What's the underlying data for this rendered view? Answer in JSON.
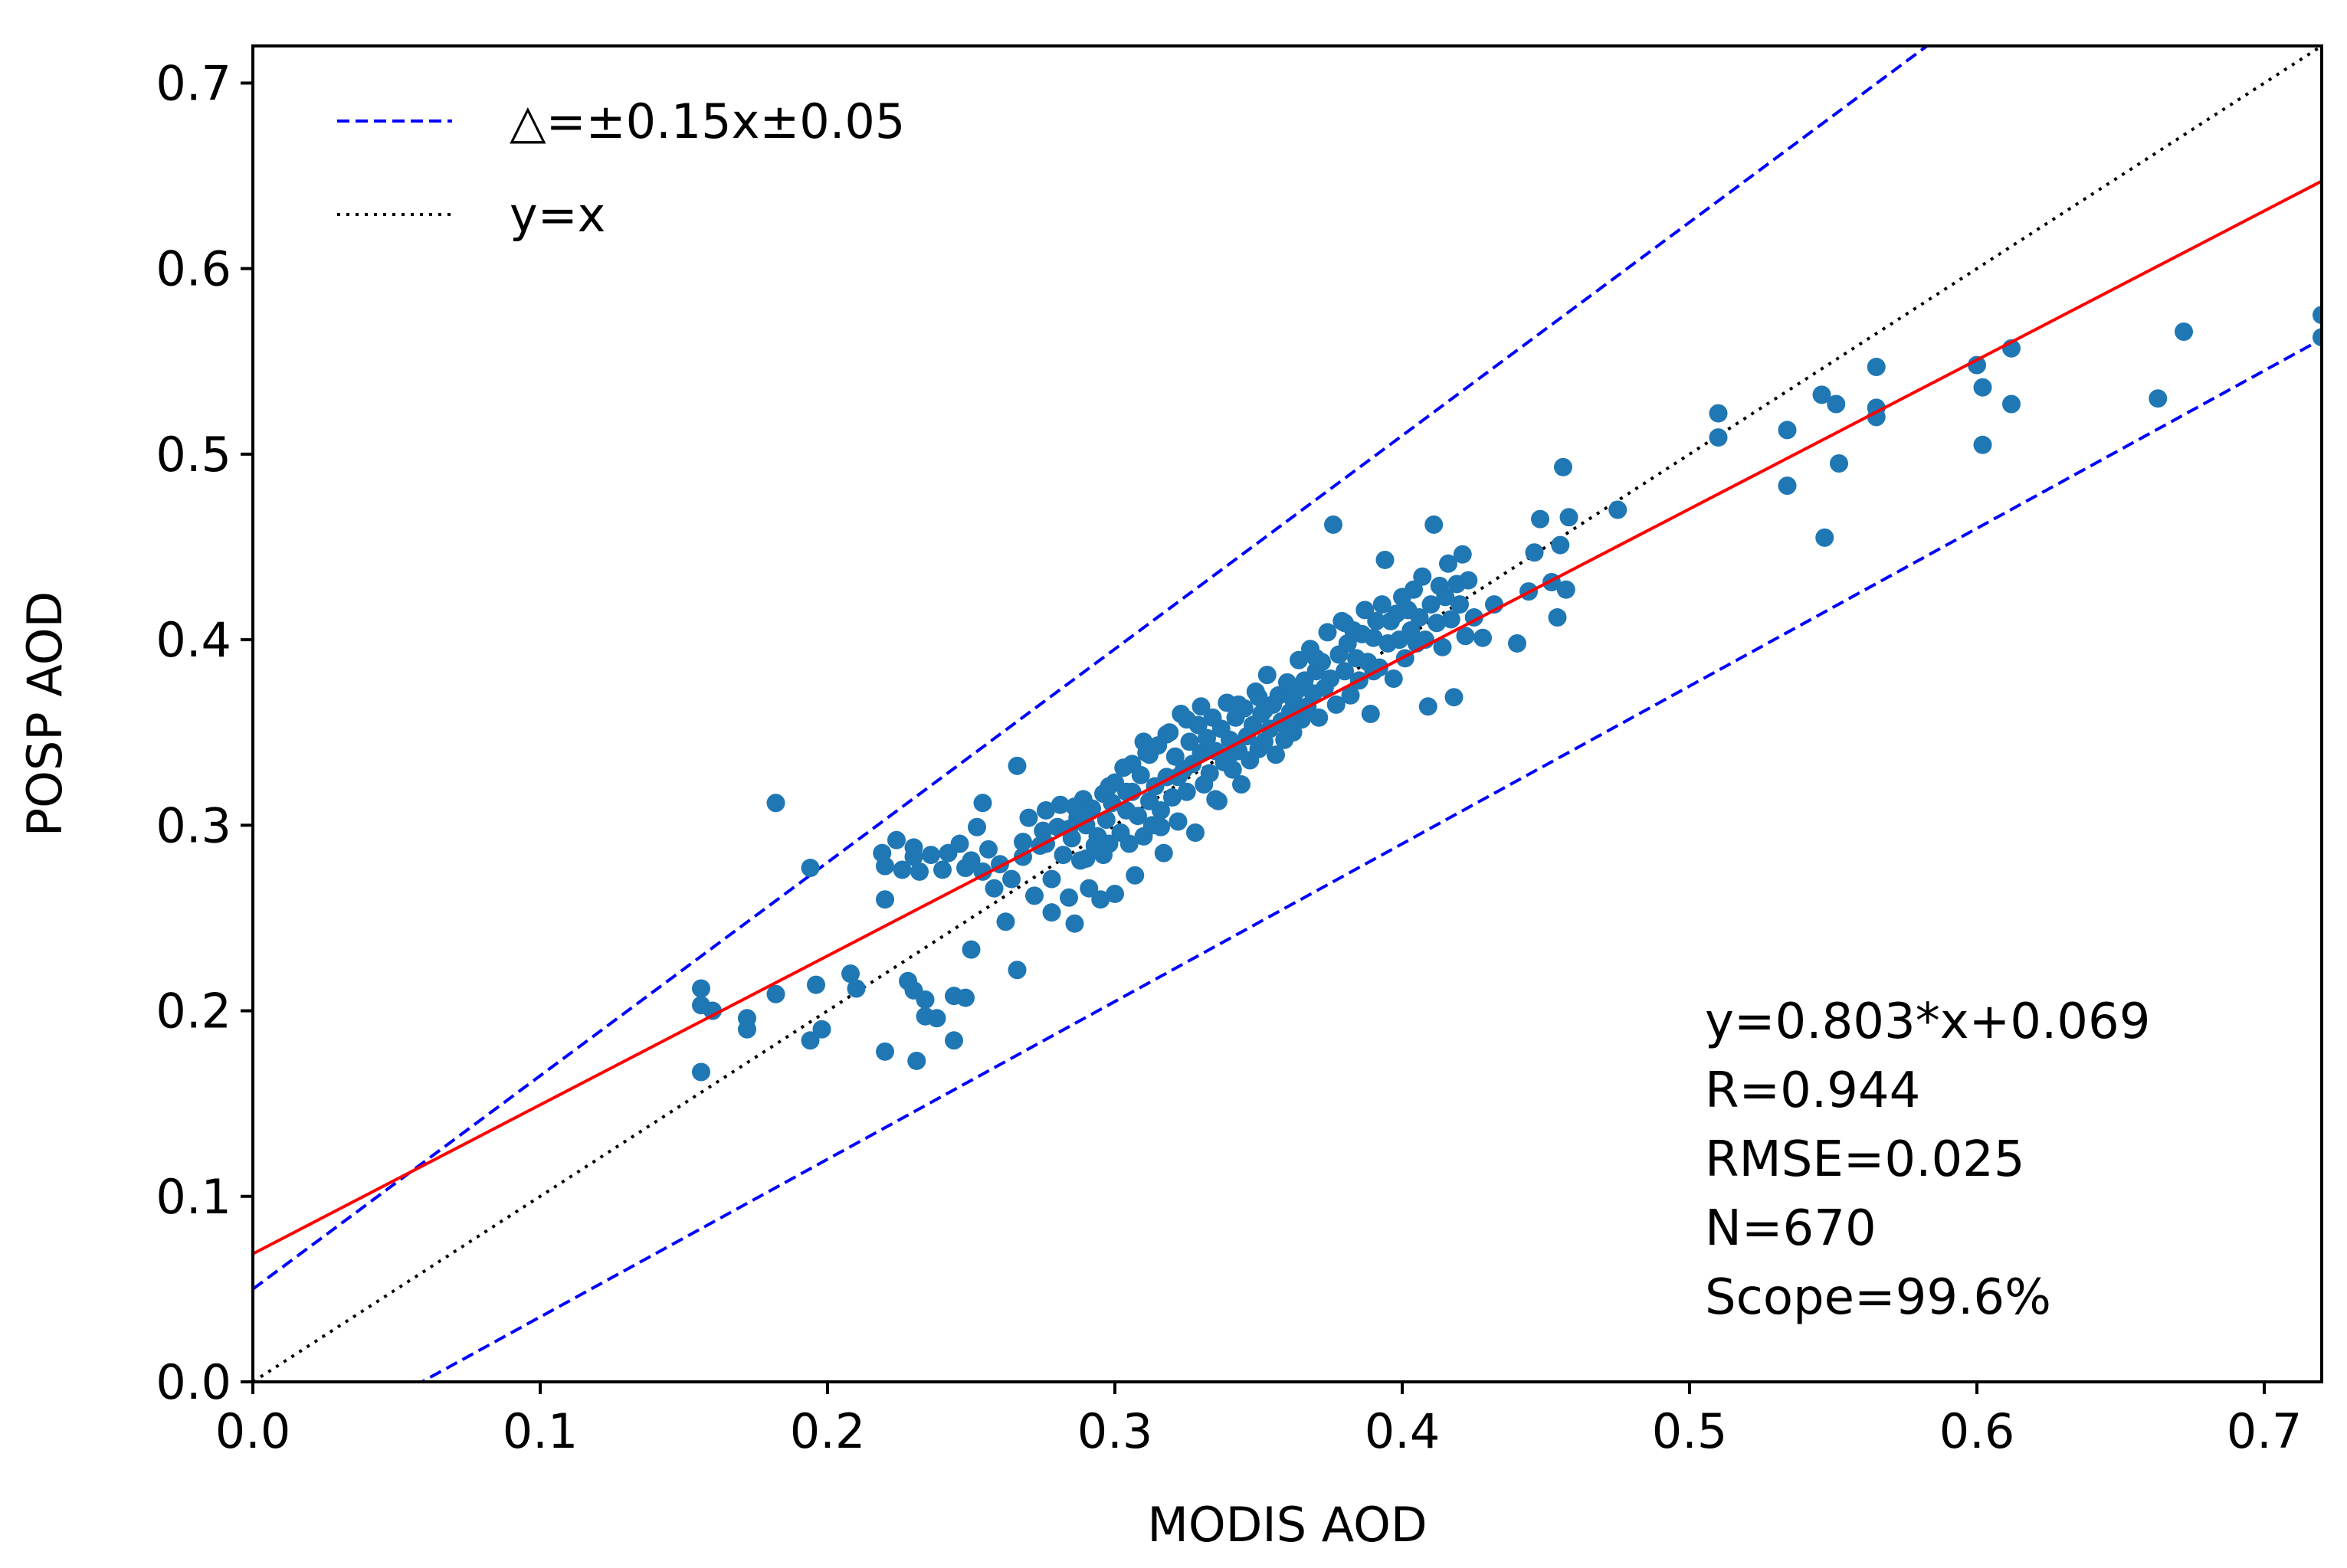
{
  "chart_data": {
    "type": "scatter",
    "title": "",
    "xlabel": "MODIS AOD",
    "ylabel": "POSP AOD",
    "xlim": [
      0.0,
      0.72
    ],
    "ylim": [
      0.0,
      0.72
    ],
    "xticks": [
      0.0,
      0.1,
      0.2,
      0.3,
      0.4,
      0.5,
      0.6,
      0.7
    ],
    "yticks": [
      0.0,
      0.1,
      0.2,
      0.3,
      0.4,
      0.5,
      0.6,
      0.7
    ],
    "xtick_labels": [
      "0.0",
      "0.1",
      "0.2",
      "0.3",
      "0.4",
      "0.5",
      "0.6",
      "0.7"
    ],
    "ytick_labels": [
      "0.0",
      "0.1",
      "0.2",
      "0.3",
      "0.4",
      "0.5",
      "0.6",
      "0.7"
    ],
    "grid": false,
    "legend": {
      "placement": "top-left",
      "entries": [
        {
          "label": "△=±0.15x±0.05",
          "style": "dashed",
          "color": "#0000ff"
        },
        {
          "label": "y=x",
          "style": "dotted",
          "color": "#000000"
        }
      ]
    },
    "lines": [
      {
        "name": "upper-envelope",
        "slope": 1.15,
        "intercept": 0.05,
        "color": "#0000ff",
        "style": "dashed"
      },
      {
        "name": "lower-envelope",
        "slope": 0.85,
        "intercept": -0.05,
        "color": "#0000ff",
        "style": "dashed"
      },
      {
        "name": "one-to-one",
        "slope": 1.0,
        "intercept": 0.0,
        "color": "#000000",
        "style": "dotted"
      },
      {
        "name": "fit",
        "slope": 0.803,
        "intercept": 0.069,
        "color": "#ff0000",
        "style": "solid"
      }
    ],
    "annotation_lines": [
      "y=0.803*x+0.069",
      "R=0.944",
      "RMSE=0.025",
      "N=670",
      "Scope=99.6%"
    ],
    "point_color": "#1f77b4",
    "series": [
      {
        "name": "samples",
        "points": [
          [
            0.156,
            0.212
          ],
          [
            0.156,
            0.203
          ],
          [
            0.156,
            0.167
          ],
          [
            0.16,
            0.2
          ],
          [
            0.172,
            0.196
          ],
          [
            0.172,
            0.19
          ],
          [
            0.182,
            0.312
          ],
          [
            0.182,
            0.209
          ],
          [
            0.194,
            0.277
          ],
          [
            0.194,
            0.184
          ],
          [
            0.196,
            0.214
          ],
          [
            0.198,
            0.19
          ],
          [
            0.208,
            0.22
          ],
          [
            0.21,
            0.212
          ],
          [
            0.219,
            0.285
          ],
          [
            0.22,
            0.26
          ],
          [
            0.22,
            0.278
          ],
          [
            0.22,
            0.178
          ],
          [
            0.224,
            0.292
          ],
          [
            0.226,
            0.276
          ],
          [
            0.228,
            0.216
          ],
          [
            0.23,
            0.283
          ],
          [
            0.23,
            0.211
          ],
          [
            0.23,
            0.288
          ],
          [
            0.231,
            0.173
          ],
          [
            0.232,
            0.275
          ],
          [
            0.234,
            0.206
          ],
          [
            0.234,
            0.197
          ],
          [
            0.236,
            0.284
          ],
          [
            0.238,
            0.196
          ],
          [
            0.24,
            0.276
          ],
          [
            0.242,
            0.285
          ],
          [
            0.244,
            0.208
          ],
          [
            0.244,
            0.184
          ],
          [
            0.246,
            0.29
          ],
          [
            0.248,
            0.277
          ],
          [
            0.248,
            0.207
          ],
          [
            0.25,
            0.281
          ],
          [
            0.25,
            0.233
          ],
          [
            0.252,
            0.299
          ],
          [
            0.254,
            0.312
          ],
          [
            0.254,
            0.275
          ],
          [
            0.256,
            0.287
          ],
          [
            0.258,
            0.266
          ],
          [
            0.26,
            0.279
          ],
          [
            0.262,
            0.248
          ],
          [
            0.264,
            0.271
          ],
          [
            0.266,
            0.332
          ],
          [
            0.266,
            0.222
          ],
          [
            0.268,
            0.291
          ],
          [
            0.27,
            0.304
          ],
          [
            0.272,
            0.262
          ],
          [
            0.274,
            0.289
          ],
          [
            0.275,
            0.297
          ],
          [
            0.276,
            0.308
          ],
          [
            0.278,
            0.271
          ],
          [
            0.278,
            0.253
          ],
          [
            0.28,
            0.299
          ],
          [
            0.281,
            0.311
          ],
          [
            0.282,
            0.284
          ],
          [
            0.284,
            0.261
          ],
          [
            0.285,
            0.293
          ],
          [
            0.286,
            0.247
          ],
          [
            0.287,
            0.304
          ],
          [
            0.288,
            0.281
          ],
          [
            0.289,
            0.314
          ],
          [
            0.29,
            0.3
          ],
          [
            0.291,
            0.266
          ],
          [
            0.292,
            0.309
          ],
          [
            0.293,
            0.289
          ],
          [
            0.294,
            0.294
          ],
          [
            0.295,
            0.26
          ],
          [
            0.296,
            0.317
          ],
          [
            0.297,
            0.303
          ],
          [
            0.298,
            0.29
          ],
          [
            0.299,
            0.312
          ],
          [
            0.3,
            0.263
          ],
          [
            0.3,
            0.323
          ],
          [
            0.302,
            0.296
          ],
          [
            0.303,
            0.331
          ],
          [
            0.304,
            0.308
          ],
          [
            0.305,
            0.29
          ],
          [
            0.306,
            0.318
          ],
          [
            0.307,
            0.273
          ],
          [
            0.308,
            0.305
          ],
          [
            0.309,
            0.327
          ],
          [
            0.31,
            0.294
          ],
          [
            0.311,
            0.339
          ],
          [
            0.312,
            0.313
          ],
          [
            0.313,
            0.3
          ],
          [
            0.314,
            0.321
          ],
          [
            0.315,
            0.343
          ],
          [
            0.316,
            0.308
          ],
          [
            0.317,
            0.285
          ],
          [
            0.318,
            0.326
          ],
          [
            0.319,
            0.35
          ],
          [
            0.32,
            0.315
          ],
          [
            0.321,
            0.337
          ],
          [
            0.322,
            0.302
          ],
          [
            0.323,
            0.36
          ],
          [
            0.324,
            0.33
          ],
          [
            0.325,
            0.318
          ],
          [
            0.326,
            0.345
          ],
          [
            0.327,
            0.333
          ],
          [
            0.328,
            0.296
          ],
          [
            0.329,
            0.354
          ],
          [
            0.33,
            0.339
          ],
          [
            0.331,
            0.322
          ],
          [
            0.332,
            0.347
          ],
          [
            0.333,
            0.328
          ],
          [
            0.334,
            0.358
          ],
          [
            0.335,
            0.34
          ],
          [
            0.336,
            0.313
          ],
          [
            0.337,
            0.352
          ],
          [
            0.338,
            0.334
          ],
          [
            0.339,
            0.366
          ],
          [
            0.34,
            0.346
          ],
          [
            0.341,
            0.33
          ],
          [
            0.342,
            0.358
          ],
          [
            0.343,
            0.34
          ],
          [
            0.344,
            0.322
          ],
          [
            0.345,
            0.363
          ],
          [
            0.346,
            0.348
          ],
          [
            0.347,
            0.335
          ],
          [
            0.348,
            0.354
          ],
          [
            0.349,
            0.372
          ],
          [
            0.35,
            0.341
          ],
          [
            0.351,
            0.36
          ],
          [
            0.352,
            0.345
          ],
          [
            0.353,
            0.381
          ],
          [
            0.354,
            0.352
          ],
          [
            0.355,
            0.365
          ],
          [
            0.356,
            0.338
          ],
          [
            0.357,
            0.37
          ],
          [
            0.358,
            0.356
          ],
          [
            0.359,
            0.346
          ],
          [
            0.36,
            0.377
          ],
          [
            0.361,
            0.361
          ],
          [
            0.362,
            0.35
          ],
          [
            0.363,
            0.372
          ],
          [
            0.364,
            0.389
          ],
          [
            0.365,
            0.357
          ],
          [
            0.366,
            0.378
          ],
          [
            0.367,
            0.364
          ],
          [
            0.368,
            0.395
          ],
          [
            0.369,
            0.371
          ],
          [
            0.37,
            0.383
          ],
          [
            0.371,
            0.358
          ],
          [
            0.372,
            0.388
          ],
          [
            0.373,
            0.374
          ],
          [
            0.374,
            0.404
          ],
          [
            0.375,
            0.379
          ],
          [
            0.376,
            0.462
          ],
          [
            0.377,
            0.365
          ],
          [
            0.378,
            0.392
          ],
          [
            0.379,
            0.41
          ],
          [
            0.38,
            0.383
          ],
          [
            0.381,
            0.398
          ],
          [
            0.382,
            0.37
          ],
          [
            0.383,
            0.405
          ],
          [
            0.384,
            0.39
          ],
          [
            0.385,
            0.378
          ],
          [
            0.386,
            0.403
          ],
          [
            0.387,
            0.416
          ],
          [
            0.388,
            0.388
          ],
          [
            0.389,
            0.36
          ],
          [
            0.39,
            0.401
          ],
          [
            0.391,
            0.41
          ],
          [
            0.392,
            0.385
          ],
          [
            0.393,
            0.419
          ],
          [
            0.394,
            0.443
          ],
          [
            0.395,
            0.398
          ],
          [
            0.396,
            0.41
          ],
          [
            0.397,
            0.379
          ],
          [
            0.398,
            0.414
          ],
          [
            0.399,
            0.4
          ],
          [
            0.4,
            0.423
          ],
          [
            0.401,
            0.39
          ],
          [
            0.402,
            0.416
          ],
          [
            0.403,
            0.405
          ],
          [
            0.404,
            0.427
          ],
          [
            0.405,
            0.398
          ],
          [
            0.406,
            0.412
          ],
          [
            0.407,
            0.434
          ],
          [
            0.408,
            0.4
          ],
          [
            0.409,
            0.364
          ],
          [
            0.41,
            0.419
          ],
          [
            0.411,
            0.462
          ],
          [
            0.412,
            0.409
          ],
          [
            0.413,
            0.429
          ],
          [
            0.414,
            0.396
          ],
          [
            0.415,
            0.423
          ],
          [
            0.416,
            0.441
          ],
          [
            0.417,
            0.411
          ],
          [
            0.418,
            0.369
          ],
          [
            0.419,
            0.43
          ],
          [
            0.42,
            0.419
          ],
          [
            0.421,
            0.446
          ],
          [
            0.422,
            0.402
          ],
          [
            0.423,
            0.432
          ],
          [
            0.425,
            0.412
          ],
          [
            0.428,
            0.401
          ],
          [
            0.432,
            0.419
          ],
          [
            0.44,
            0.398
          ],
          [
            0.444,
            0.426
          ],
          [
            0.446,
            0.447
          ],
          [
            0.448,
            0.465
          ],
          [
            0.452,
            0.431
          ],
          [
            0.454,
            0.412
          ],
          [
            0.455,
            0.451
          ],
          [
            0.456,
            0.493
          ],
          [
            0.457,
            0.427
          ],
          [
            0.458,
            0.466
          ],
          [
            0.475,
            0.47
          ],
          [
            0.51,
            0.522
          ],
          [
            0.51,
            0.509
          ],
          [
            0.534,
            0.513
          ],
          [
            0.534,
            0.483
          ],
          [
            0.546,
            0.532
          ],
          [
            0.547,
            0.455
          ],
          [
            0.551,
            0.527
          ],
          [
            0.552,
            0.495
          ],
          [
            0.565,
            0.547
          ],
          [
            0.565,
            0.52
          ],
          [
            0.565,
            0.525
          ],
          [
            0.6,
            0.548
          ],
          [
            0.602,
            0.536
          ],
          [
            0.602,
            0.505
          ],
          [
            0.612,
            0.557
          ],
          [
            0.612,
            0.527
          ],
          [
            0.663,
            0.53
          ],
          [
            0.672,
            0.566
          ],
          [
            0.72,
            0.575
          ],
          [
            0.72,
            0.563
          ],
          [
            0.325,
            0.357
          ],
          [
            0.318,
            0.349
          ],
          [
            0.335,
            0.314
          ],
          [
            0.29,
            0.282
          ],
          [
            0.306,
            0.333
          ],
          [
            0.298,
            0.321
          ],
          [
            0.284,
            0.298
          ],
          [
            0.276,
            0.29
          ],
          [
            0.268,
            0.283
          ],
          [
            0.31,
            0.345
          ],
          [
            0.343,
            0.365
          ],
          [
            0.35,
            0.369
          ],
          [
            0.36,
            0.352
          ],
          [
            0.37,
            0.39
          ],
          [
            0.38,
            0.409
          ],
          [
            0.39,
            0.383
          ],
          [
            0.322,
            0.326
          ],
          [
            0.33,
            0.364
          ],
          [
            0.316,
            0.299
          ],
          [
            0.304,
            0.318
          ],
          [
            0.296,
            0.284
          ],
          [
            0.286,
            0.31
          ],
          [
            0.312,
            0.338
          ],
          [
            0.34,
            0.338
          ],
          [
            0.352,
            0.362
          ],
          [
            0.362,
            0.368
          ]
        ]
      }
    ]
  }
}
